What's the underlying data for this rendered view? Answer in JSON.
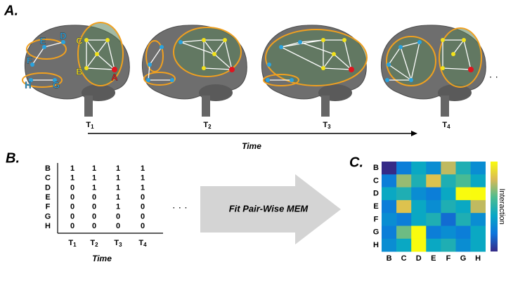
{
  "panel_a": {
    "label": "A.",
    "node_labels": [
      "A",
      "B",
      "C",
      "D",
      "E",
      "F",
      "G",
      "H"
    ],
    "time_points": [
      {
        "base": "T",
        "sub": "1"
      },
      {
        "base": "T",
        "sub": "2"
      },
      {
        "base": "T",
        "sub": "3"
      },
      {
        "base": "T",
        "sub": "4"
      }
    ],
    "ellipsis": "· ·",
    "axis_label": "Time"
  },
  "panel_b": {
    "label": "B.",
    "rows": [
      "B",
      "C",
      "D",
      "E",
      "F",
      "G",
      "H"
    ],
    "matrix": [
      [
        1,
        1,
        1,
        1
      ],
      [
        1,
        1,
        1,
        1
      ],
      [
        0,
        1,
        1,
        1
      ],
      [
        0,
        0,
        1,
        0
      ],
      [
        0,
        0,
        1,
        0
      ],
      [
        0,
        0,
        0,
        0
      ],
      [
        0,
        0,
        0,
        0
      ]
    ],
    "columns": [
      {
        "base": "T",
        "sub": "1"
      },
      {
        "base": "T",
        "sub": "2"
      },
      {
        "base": "T",
        "sub": "3"
      },
      {
        "base": "T",
        "sub": "4"
      }
    ],
    "ellipsis": "· · ·",
    "axis_label": "Time"
  },
  "arrow_text": "Fit Pair-Wise MEM",
  "panel_c": {
    "label": "C.",
    "rows": [
      "B",
      "C",
      "D",
      "E",
      "F",
      "G",
      "H"
    ],
    "columns": [
      "B",
      "C",
      "D",
      "E",
      "F",
      "G",
      "H"
    ],
    "values": [
      [
        0.1,
        0.3,
        0.45,
        0.35,
        0.75,
        0.5,
        0.35
      ],
      [
        0.3,
        0.7,
        0.5,
        0.8,
        0.5,
        0.6,
        0.45
      ],
      [
        0.45,
        0.5,
        0.35,
        0.3,
        0.45,
        0.95,
        0.95
      ],
      [
        0.3,
        0.8,
        0.45,
        0.35,
        0.5,
        0.45,
        0.75
      ],
      [
        0.35,
        0.3,
        0.45,
        0.5,
        0.25,
        0.5,
        0.35
      ],
      [
        0.3,
        0.65,
        0.95,
        0.3,
        0.35,
        0.3,
        0.45
      ],
      [
        0.35,
        0.45,
        0.95,
        0.45,
        0.5,
        0.35,
        0.45
      ]
    ],
    "colorbar_label": "Interaction"
  }
}
